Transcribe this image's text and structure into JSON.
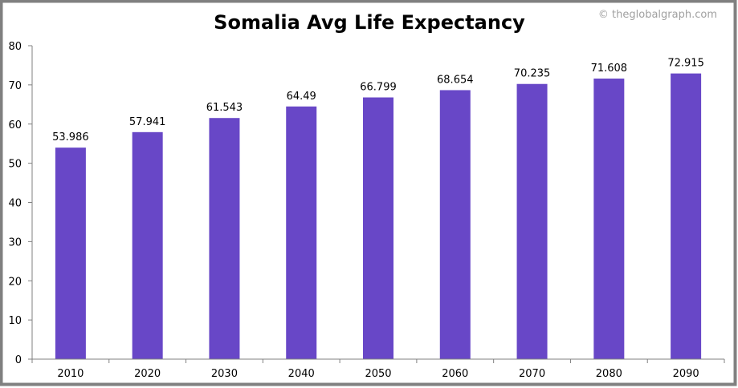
{
  "chart_data": {
    "type": "bar",
    "title": "Somalia Avg Life Expectancy",
    "watermark": "© theglobalgraph.com",
    "xlabel": "",
    "ylabel": "",
    "categories": [
      "2010",
      "2020",
      "2030",
      "2040",
      "2050",
      "2060",
      "2070",
      "2080",
      "2090"
    ],
    "values": [
      53.986,
      57.941,
      61.543,
      64.49,
      66.799,
      68.654,
      70.235,
      71.608,
      72.915
    ],
    "data_labels": [
      "53.986",
      "57.941",
      "61.543",
      "64.49",
      "66.799",
      "68.654",
      "70.235",
      "71.608",
      "72.915"
    ],
    "ylim": [
      0,
      80
    ],
    "yticks": [
      0,
      10,
      20,
      30,
      40,
      50,
      60,
      70,
      80
    ],
    "grid": false,
    "legend": "none",
    "colors": {
      "bar": "#6847C7",
      "axis": "#808080",
      "border": "#808080",
      "watermark": "#A0A0A0"
    }
  }
}
